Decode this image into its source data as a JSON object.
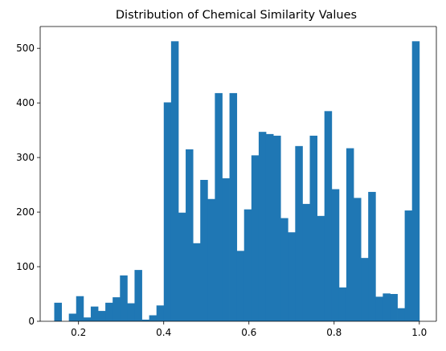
{
  "chart_data": {
    "type": "bar",
    "title": "Distribution of Chemical Similarity Values",
    "xlabel": "",
    "ylabel": "",
    "xlim": [
      0.11,
      1.04
    ],
    "ylim": [
      0,
      540
    ],
    "bin_start": 0.143,
    "bin_width": 0.01714,
    "values": [
      34,
      0,
      14,
      46,
      7,
      27,
      19,
      34,
      44,
      84,
      33,
      94,
      3,
      11,
      29,
      401,
      513,
      199,
      315,
      143,
      259,
      224,
      418,
      262,
      418,
      129,
      205,
      304,
      347,
      343,
      340,
      189,
      163,
      321,
      215,
      340,
      193,
      385,
      242,
      62,
      317,
      226,
      116,
      237,
      45,
      51,
      50,
      24,
      203,
      513
    ],
    "x_ticks": [
      0.2,
      0.4,
      0.6,
      0.8,
      1.0
    ],
    "x_tick_labels": [
      "0.2",
      "0.4",
      "0.6",
      "0.8",
      "1.0"
    ],
    "y_ticks": [
      0,
      100,
      200,
      300,
      400,
      500
    ],
    "y_tick_labels": [
      "0",
      "100",
      "200",
      "300",
      "400",
      "500"
    ],
    "grid": false,
    "bar_color": "#1f77b4",
    "axis_color": "#000000"
  }
}
